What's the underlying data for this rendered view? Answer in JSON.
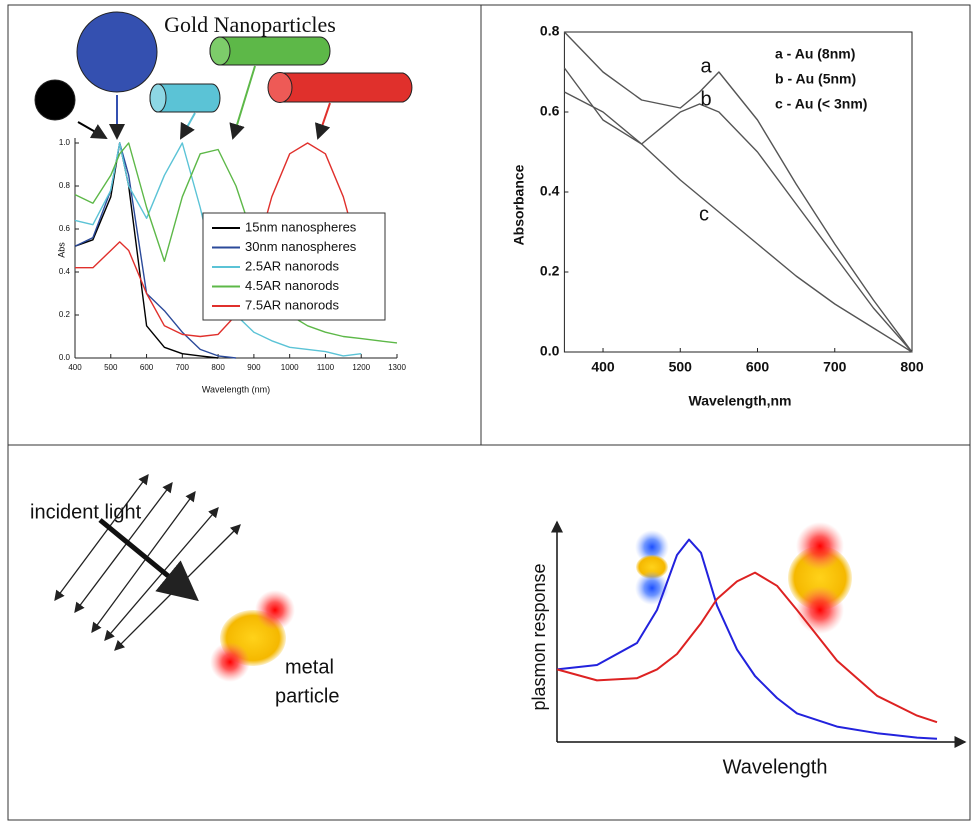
{
  "chart_data": [
    {
      "type": "line",
      "title": "Gold Nanoparticles",
      "xlabel": "Wavelength (nm)",
      "ylabel": "Abs",
      "x": [
        400,
        450,
        500,
        525,
        550,
        600,
        650,
        700,
        750,
        800,
        850,
        900,
        950,
        1000,
        1050,
        1100,
        1150,
        1200,
        1250,
        1300
      ],
      "series": [
        {
          "name": "15nm nanospheres",
          "color": "#000000",
          "values": [
            0.52,
            0.55,
            0.75,
            1.0,
            0.8,
            0.15,
            0.05,
            0.02,
            0.01,
            0.0,
            null,
            null,
            null,
            null,
            null,
            null,
            null,
            null,
            null,
            null
          ]
        },
        {
          "name": "30nm nanospheres",
          "color": "#2b4a9a",
          "values": [
            0.52,
            0.56,
            0.78,
            1.0,
            0.85,
            0.3,
            0.22,
            0.12,
            0.04,
            0.01,
            0.0,
            null,
            null,
            null,
            null,
            null,
            null,
            null,
            null,
            null
          ]
        },
        {
          "name": "2.5AR nanorods",
          "color": "#5bc3d6",
          "values": [
            0.64,
            0.62,
            0.78,
            1.0,
            0.8,
            0.65,
            0.85,
            1.0,
            0.7,
            0.35,
            0.2,
            0.12,
            0.08,
            0.05,
            0.04,
            0.03,
            0.01,
            0.02,
            null,
            null
          ]
        },
        {
          "name": "4.5AR nanorods",
          "color": "#5db848",
          "values": [
            0.76,
            0.72,
            0.85,
            0.95,
            1.0,
            0.7,
            0.45,
            0.75,
            0.95,
            0.97,
            0.8,
            0.55,
            0.35,
            0.2,
            0.15,
            0.12,
            0.1,
            0.09,
            0.08,
            0.07
          ]
        },
        {
          "name": "7.5AR nanorods",
          "color": "#e0302c",
          "values": [
            0.42,
            0.42,
            0.5,
            0.54,
            0.5,
            0.3,
            0.15,
            0.11,
            0.1,
            0.11,
            0.2,
            0.45,
            0.75,
            0.95,
            1.0,
            0.95,
            0.75,
            0.45,
            null,
            null
          ]
        }
      ],
      "xlim": [
        400,
        1300
      ],
      "xticks": [
        400,
        500,
        600,
        700,
        800,
        900,
        1000,
        1100,
        1200,
        1300
      ],
      "ylim": [
        0,
        1.0
      ],
      "yticks": [
        {
          "value": 0,
          "label": "0.0"
        },
        0.2,
        0.4,
        0.6,
        0.8,
        {
          "value": 1.0,
          "label": "1.0"
        }
      ],
      "legend": "center-right"
    },
    {
      "type": "line",
      "xlabel": "Wavelength,nm",
      "ylabel": "Absorbance",
      "x": [
        350,
        400,
        450,
        500,
        525,
        550,
        600,
        650,
        700,
        750,
        800
      ],
      "series": [
        {
          "name": "a - Au (8nm)",
          "label": "a",
          "color": "#555555",
          "values": [
            0.8,
            0.7,
            0.63,
            0.61,
            0.65,
            0.7,
            0.58,
            0.42,
            0.27,
            0.13,
            0.0
          ]
        },
        {
          "name": "b - Au (5nm)",
          "label": "b",
          "color": "#555555",
          "values": [
            0.71,
            0.58,
            0.52,
            0.6,
            0.62,
            0.6,
            0.5,
            0.37,
            0.24,
            0.11,
            0.0
          ]
        },
        {
          "name": "c - Au (< 3nm)",
          "label": "c",
          "color": "#555555",
          "values": [
            0.65,
            0.6,
            0.52,
            0.43,
            0.39,
            0.35,
            0.27,
            0.19,
            0.12,
            0.06,
            0.0
          ]
        }
      ],
      "xlim": [
        350,
        800
      ],
      "xticks": [
        400,
        500,
        600,
        700,
        800
      ],
      "ylim": [
        0,
        0.8
      ],
      "yticks": [
        {
          "value": 0,
          "label": "0.0"
        },
        0.2,
        0.4,
        0.6,
        0.8
      ],
      "legend": "upper-right"
    },
    {
      "type": "line",
      "xlabel": "Wavelength",
      "ylabel": "plasmon response",
      "x": [
        0,
        1,
        2,
        2.5,
        3,
        3.3,
        3.6,
        4,
        4.5,
        4.95,
        5.5,
        6,
        7,
        8,
        9,
        9.5
      ],
      "series": [
        {
          "color": "#2222dd",
          "values": [
            3.3,
            3.5,
            4.5,
            6,
            8.5,
            9.2,
            8.6,
            6.2,
            4.2,
            3.0,
            2.0,
            1.3,
            0.7,
            0.4,
            0.2,
            0.15
          ]
        },
        {
          "color": "#dd2222",
          "values": [
            3.3,
            2.8,
            2.9,
            3.3,
            4,
            4.7,
            5.4,
            6.5,
            7.3,
            7.7,
            7.1,
            6,
            3.7,
            2.1,
            1.2,
            0.9
          ]
        }
      ],
      "xlim": [
        0,
        10
      ],
      "ylim": [
        0,
        10
      ]
    }
  ],
  "diagram": {
    "labels": [
      "incident light",
      "metal",
      "particle"
    ]
  }
}
